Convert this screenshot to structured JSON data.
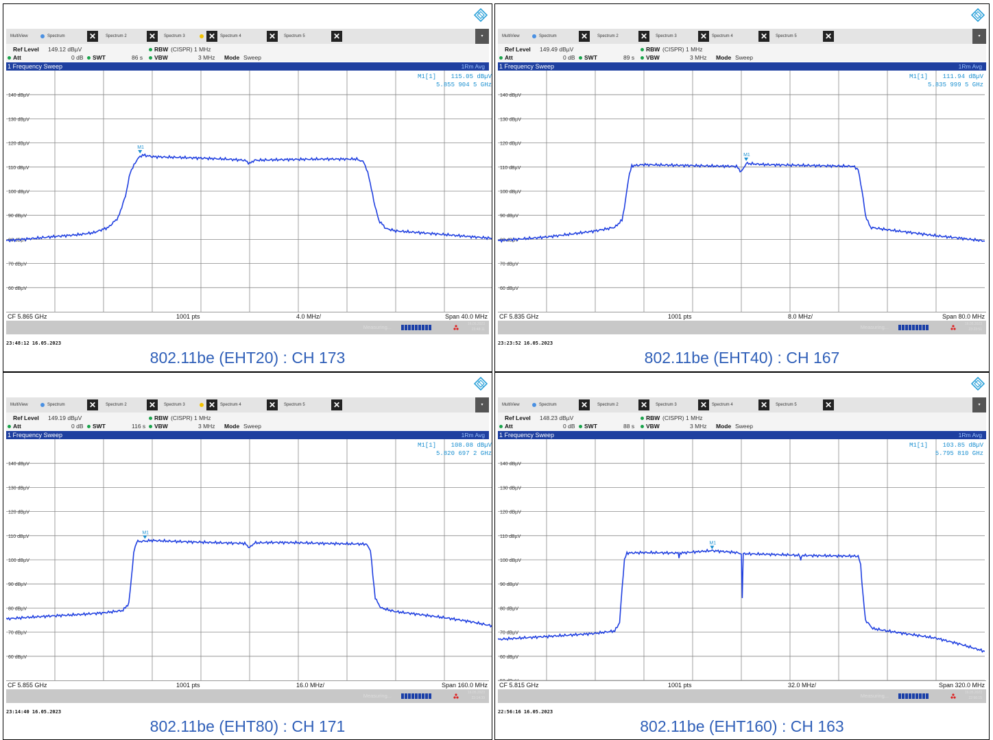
{
  "tabs": [
    "MultiView",
    "Spectrum",
    "Spectrum 2",
    "Spectrum 3",
    "Spectrum 4",
    "Spectrum 5"
  ],
  "labels": {
    "ref_level": "Ref Level",
    "att": "Att",
    "swt": "SWT",
    "rbw": "RBW",
    "vbw": "VBW",
    "mode": "Mode",
    "measuring": "Measuring...",
    "sweep": "1 Frequency Sweep",
    "trace_mode": "1Rm Avg"
  },
  "colors": {
    "trace": "#1f3fe0",
    "grid": "#777777",
    "caption": "#2f5fb8",
    "marker": "#1a8fd0"
  },
  "panels": [
    {
      "ref_level": "149.12 dBµV",
      "att": "0 dB",
      "swt": "86 s",
      "rbw": "(CISPR) 1 MHz",
      "vbw": "3 MHz",
      "mode": "Sweep",
      "marker_name": "M1[1]",
      "marker_level": "115.05 dBµV",
      "marker_freq": "5.855 904 5 GHz",
      "cf": "CF 5.865 GHz",
      "pts": "1001 pts",
      "div": "4.0 MHz/",
      "span": "Span 40.0 MHz",
      "status_date": "16.05.2023",
      "status_time": "23:48:11",
      "timestamp": "23:48:12  16.05.2023",
      "caption": "802.11be (EHT20) : CH 173",
      "chart_data": {
        "type": "line",
        "xlabel": "",
        "ylabel": "",
        "ylim": [
          50,
          150
        ],
        "y_ticks": [
          140,
          130,
          120,
          110,
          100,
          90,
          80,
          70,
          60
        ],
        "y_tick_labels": [
          "140 dBµV",
          "130 dBµV",
          "120 dBµV",
          "110 dBµV",
          "100 dBµV",
          "90 dBµV",
          "80 dBµV",
          "70 dBµV",
          "60 dBµV"
        ],
        "grid": true,
        "x_divisions": 10,
        "marker": {
          "label": "M1",
          "x_div": 2.75,
          "y": 115.05
        },
        "series": [
          {
            "values": [
              [
                0,
                79.5
              ],
              [
                0.5,
                80.3
              ],
              [
                1,
                81.2
              ],
              [
                1.5,
                82
              ],
              [
                1.8,
                82.8
              ],
              [
                2.1,
                85
              ],
              [
                2.3,
                89
              ],
              [
                2.45,
                98
              ],
              [
                2.55,
                108
              ],
              [
                2.7,
                113.5
              ],
              [
                2.8,
                115
              ],
              [
                3,
                114.3
              ],
              [
                3.5,
                114
              ],
              [
                4,
                113.7
              ],
              [
                4.5,
                113.3
              ],
              [
                4.9,
                112.8
              ],
              [
                5,
                111.5
              ],
              [
                5.1,
                112.8
              ],
              [
                5.5,
                113
              ],
              [
                6,
                113.2
              ],
              [
                6.5,
                113.3
              ],
              [
                7.2,
                113.3
              ],
              [
                7.35,
                112
              ],
              [
                7.45,
                106
              ],
              [
                7.55,
                96
              ],
              [
                7.65,
                88
              ],
              [
                7.8,
                84.5
              ],
              [
                8,
                83.5
              ],
              [
                8.5,
                82.8
              ],
              [
                9,
                82
              ],
              [
                9.5,
                81.2
              ],
              [
                10,
                80.4
              ]
            ]
          }
        ]
      }
    },
    {
      "ref_level": "149.49 dBµV",
      "att": "0 dB",
      "swt": "89 s",
      "rbw": "(CISPR) 1 MHz",
      "vbw": "3 MHz",
      "mode": "Sweep",
      "marker_name": "M1[1]",
      "marker_level": "111.94 dBµV",
      "marker_freq": "5.835 999 5 GHz",
      "cf": "CF 5.835 GHz",
      "pts": "1001 pts",
      "div": "8.0 MHz/",
      "span": "Span 80.0 MHz",
      "status_date": "16.05.2023",
      "status_time": "23:23:51",
      "timestamp": "23:23:52  16.05.2023",
      "caption": "802.11be (EHT40) : CH 167",
      "chart_data": {
        "type": "line",
        "xlabel": "",
        "ylabel": "",
        "ylim": [
          50,
          150
        ],
        "y_ticks": [
          140,
          130,
          120,
          110,
          100,
          90,
          80,
          70,
          60
        ],
        "y_tick_labels": [
          "140 dBµV",
          "130 dBµV",
          "120 dBµV",
          "110 dBµV",
          "100 dBµV",
          "90 dBµV",
          "80 dBµV",
          "70 dBµV",
          "60 dBµV"
        ],
        "grid": true,
        "x_divisions": 10,
        "marker": {
          "label": "M1",
          "x_div": 5.1,
          "y": 111.94
        },
        "series": [
          {
            "values": [
              [
                0,
                79.5
              ],
              [
                0.5,
                80.2
              ],
              [
                1,
                81
              ],
              [
                1.5,
                82.2
              ],
              [
                2,
                83.5
              ],
              [
                2.4,
                85
              ],
              [
                2.55,
                88
              ],
              [
                2.62,
                96
              ],
              [
                2.68,
                105
              ],
              [
                2.75,
                110.5
              ],
              [
                3,
                111
              ],
              [
                3.5,
                110.8
              ],
              [
                4,
                110.6
              ],
              [
                4.5,
                110.4
              ],
              [
                4.9,
                110.3
              ],
              [
                5,
                108
              ],
              [
                5.1,
                111.5
              ],
              [
                5.5,
                111
              ],
              [
                6,
                110.8
              ],
              [
                6.5,
                110.6
              ],
              [
                7.3,
                110.3
              ],
              [
                7.4,
                109
              ],
              [
                7.48,
                100
              ],
              [
                7.55,
                90
              ],
              [
                7.65,
                85
              ],
              [
                8,
                84
              ],
              [
                8.5,
                82.8
              ],
              [
                9,
                81.5
              ],
              [
                9.5,
                80.5
              ],
              [
                10,
                79.3
              ]
            ]
          }
        ]
      }
    },
    {
      "ref_level": "149.19 dBµV",
      "att": "0 dB",
      "swt": "116 s",
      "rbw": "(CISPR) 1 MHz",
      "vbw": "3 MHz",
      "mode": "Sweep",
      "marker_name": "M1[1]",
      "marker_level": "108.08 dBµV",
      "marker_freq": "5.820 697 2 GHz",
      "cf": "CF 5.855 GHz",
      "pts": "1001 pts",
      "div": "16.0 MHz/",
      "span": "Span 160.0 MHz",
      "status_date": "16.05.2023",
      "status_time": "23:14:39",
      "timestamp": "23:14:40  16.05.2023",
      "caption": "802.11be (EHT80) : CH 171",
      "chart_data": {
        "type": "line",
        "xlabel": "",
        "ylabel": "",
        "ylim": [
          50,
          150
        ],
        "y_ticks": [
          140,
          130,
          120,
          110,
          100,
          90,
          80,
          70,
          60
        ],
        "y_tick_labels": [
          "140 dBµV",
          "130 dBµV",
          "120 dBµV",
          "110 dBµV",
          "100 dBµV",
          "90 dBµV",
          "80 dBµV",
          "70 dBµV",
          "60 dBµV"
        ],
        "grid": true,
        "x_divisions": 10,
        "marker": {
          "label": "M1",
          "x_div": 2.85,
          "y": 108.08
        },
        "series": [
          {
            "values": [
              [
                0,
                75.5
              ],
              [
                0.5,
                76.2
              ],
              [
                1,
                76.8
              ],
              [
                1.5,
                77.3
              ],
              [
                2,
                78
              ],
              [
                2.4,
                79
              ],
              [
                2.52,
                82
              ],
              [
                2.57,
                92
              ],
              [
                2.62,
                103
              ],
              [
                2.68,
                107.5
              ],
              [
                3,
                108
              ],
              [
                3.5,
                107.6
              ],
              [
                4,
                107.3
              ],
              [
                4.5,
                107
              ],
              [
                4.9,
                106.8
              ],
              [
                5,
                105
              ],
              [
                5.1,
                107
              ],
              [
                5.5,
                107.2
              ],
              [
                6,
                107.1
              ],
              [
                6.5,
                106.8
              ],
              [
                7.4,
                106.5
              ],
              [
                7.48,
                104
              ],
              [
                7.53,
                94
              ],
              [
                7.58,
                84
              ],
              [
                7.7,
                80
              ],
              [
                8,
                78.5
              ],
              [
                8.5,
                77.3
              ],
              [
                9,
                76
              ],
              [
                9.5,
                74.5
              ],
              [
                10,
                72.5
              ]
            ]
          }
        ]
      }
    },
    {
      "ref_level": "148.23 dBµV",
      "att": "0 dB",
      "swt": "88 s",
      "rbw": "(CISPR) 1 MHz",
      "vbw": "3 MHz",
      "mode": "Sweep",
      "marker_name": "M1[1]",
      "marker_level": "103.85 dBµV",
      "marker_freq": "5.795 810 GHz",
      "cf": "CF 5.815 GHz",
      "pts": "1001 pts",
      "div": "32.0 MHz/",
      "span": "Span 320.0 MHz",
      "status_date": "16.05.2023",
      "status_time": "22:56:15",
      "timestamp": "22:56:16  16.05.2023",
      "caption": "802.11be (EHT160) : CH 163",
      "chart_data": {
        "type": "line",
        "xlabel": "",
        "ylabel": "",
        "ylim": [
          50,
          150
        ],
        "y_ticks": [
          140,
          130,
          120,
          110,
          100,
          90,
          80,
          70,
          60,
          50
        ],
        "y_tick_labels": [
          "140 dBµV",
          "130 dBµV",
          "120 dBµV",
          "110 dBµV",
          "100 dBµV",
          "90 dBµV",
          "80 dBµV",
          "70 dBµV",
          "60 dBµV",
          "50 dBµV"
        ],
        "grid": true,
        "x_divisions": 10,
        "marker": {
          "label": "M1",
          "x_div": 4.4,
          "y": 103.85
        },
        "series": [
          {
            "values": [
              [
                0,
                67
              ],
              [
                0.5,
                67.6
              ],
              [
                1,
                68.2
              ],
              [
                1.5,
                68.8
              ],
              [
                2,
                69.5
              ],
              [
                2.4,
                70.5
              ],
              [
                2.5,
                74
              ],
              [
                2.55,
                88
              ],
              [
                2.6,
                100
              ],
              [
                2.65,
                102.8
              ],
              [
                3,
                103
              ],
              [
                3.7,
                102.8
              ],
              [
                3.72,
                101
              ],
              [
                3.74,
                102.8
              ],
              [
                4.4,
                103.8
              ],
              [
                4.9,
                103
              ],
              [
                5,
                102.5
              ],
              [
                5.02,
                84
              ],
              [
                5.04,
                102.5
              ],
              [
                5.5,
                102.3
              ],
              [
                6,
                102
              ],
              [
                6.2,
                101.8
              ],
              [
                6.22,
                99.5
              ],
              [
                6.24,
                101.8
              ],
              [
                7.4,
                101.5
              ],
              [
                7.45,
                98
              ],
              [
                7.5,
                85
              ],
              [
                7.55,
                75
              ],
              [
                7.7,
                71.5
              ],
              [
                8,
                70.5
              ],
              [
                8.5,
                69
              ],
              [
                9,
                67.5
              ],
              [
                9.5,
                65
              ],
              [
                10,
                62
              ]
            ]
          }
        ]
      }
    }
  ]
}
